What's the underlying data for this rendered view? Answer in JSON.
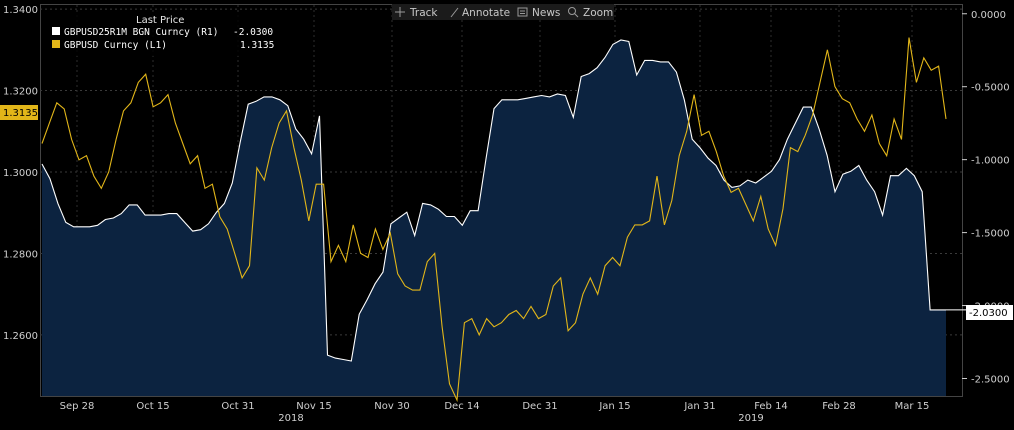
{
  "toolbar": {
    "track_label": "Track",
    "annotate_label": "Annotate",
    "news_label": "News",
    "zoom_label": "Zoom"
  },
  "legend": {
    "title": "Last Price",
    "entries": [
      {
        "name": "GBPUSD25R1M BGN Curncy  (R1)",
        "value": "-2.0300",
        "color": "#ffffff"
      },
      {
        "name": "GBPUSD Curncy  (L1)",
        "value": "1.3135",
        "color": "#e2b619"
      }
    ]
  },
  "last_value_tags": {
    "left": "1.3135",
    "right": "-2.0300"
  },
  "colors": {
    "background": "#000000",
    "area_fill": "#0c2340",
    "area_line": "#ffffff",
    "price_line": "#e2b619",
    "grid": "#3a3a3a"
  },
  "chart_data": {
    "type": "line",
    "x_tick_labels": [
      "Sep 28",
      "Oct 15",
      "Oct 31",
      "Nov 15",
      "Nov 30",
      "Dec 14",
      "Dec 31",
      "Jan 15",
      "Jan 31",
      "Feb 14",
      "Feb 28",
      "Mar 15"
    ],
    "year_labels": [
      "2018",
      "2019"
    ],
    "left_axis": {
      "ticks": [
        "1.3400",
        "1.3200",
        "1.3000",
        "1.2800",
        "1.2600"
      ],
      "range": [
        1.245,
        1.341
      ]
    },
    "right_axis": {
      "ticks": [
        "0.0000",
        "-0.5000",
        "-1.0000",
        "-1.5000",
        "-2.0000",
        "-2.5000"
      ],
      "range": [
        -2.62,
        0.06
      ]
    },
    "grid": true,
    "legend_position": "top-left",
    "series": [
      {
        "name": "GBPUSD25R1M BGN Curncy (R1)",
        "axis": "right",
        "style": "area",
        "values": [
          -1.03,
          -1.13,
          -1.3,
          -1.43,
          -1.46,
          -1.46,
          -1.46,
          -1.45,
          -1.41,
          -1.4,
          -1.37,
          -1.31,
          -1.31,
          -1.38,
          -1.38,
          -1.38,
          -1.37,
          -1.37,
          -1.43,
          -1.49,
          -1.48,
          -1.44,
          -1.36,
          -1.3,
          -1.16,
          -0.88,
          -0.62,
          -0.6,
          -0.57,
          -0.57,
          -0.59,
          -0.63,
          -0.79,
          -0.86,
          -0.96,
          -0.7,
          -2.34,
          -2.36,
          -2.37,
          -2.38,
          -2.06,
          -1.96,
          -1.85,
          -1.77,
          -1.44,
          -1.4,
          -1.36,
          -1.52,
          -1.3,
          -1.31,
          -1.34,
          -1.39,
          -1.39,
          -1.45,
          -1.35,
          -1.35,
          -0.99,
          -0.65,
          -0.59,
          -0.59,
          -0.59,
          -0.58,
          -0.57,
          -0.56,
          -0.57,
          -0.55,
          -0.56,
          -0.71,
          -0.43,
          -0.41,
          -0.37,
          -0.3,
          -0.21,
          -0.18,
          -0.19,
          -0.42,
          -0.32,
          -0.32,
          -0.33,
          -0.33,
          -0.4,
          -0.59,
          -0.86,
          -0.92,
          -0.99,
          -1.04,
          -1.14,
          -1.19,
          -1.18,
          -1.14,
          -1.16,
          -1.12,
          -1.08,
          -1.0,
          -0.86,
          -0.75,
          -0.64,
          -0.64,
          -0.79,
          -0.97,
          -1.22,
          -1.1,
          -1.08,
          -1.04,
          -1.14,
          -1.22,
          -1.38,
          -1.11,
          -1.11,
          -1.06,
          -1.11,
          -1.22,
          -2.03,
          -2.03,
          -2.03
        ]
      },
      {
        "name": "GBPUSD Curncy (L1)",
        "axis": "left",
        "style": "line",
        "values": [
          1.307,
          1.312,
          1.317,
          1.3155,
          1.308,
          1.303,
          1.304,
          1.299,
          1.296,
          1.3,
          1.308,
          1.315,
          1.317,
          1.322,
          1.324,
          1.316,
          1.317,
          1.319,
          1.312,
          1.307,
          1.302,
          1.304,
          1.296,
          1.297,
          1.289,
          1.286,
          1.28,
          1.274,
          1.277,
          1.301,
          1.298,
          1.306,
          1.312,
          1.315,
          1.306,
          1.298,
          1.288,
          1.297,
          1.297,
          1.278,
          1.282,
          1.278,
          1.287,
          1.28,
          1.279,
          1.286,
          1.281,
          1.285,
          1.275,
          1.272,
          1.271,
          1.271,
          1.278,
          1.28,
          1.262,
          1.248,
          1.244,
          1.263,
          1.264,
          1.26,
          1.264,
          1.262,
          1.263,
          1.265,
          1.266,
          1.264,
          1.267,
          1.264,
          1.265,
          1.272,
          1.274,
          1.261,
          1.263,
          1.27,
          1.274,
          1.27,
          1.277,
          1.279,
          1.277,
          1.284,
          1.287,
          1.287,
          1.288,
          1.299,
          1.287,
          1.293,
          1.304,
          1.31,
          1.319,
          1.309,
          1.31,
          1.305,
          1.299,
          1.295,
          1.296,
          1.292,
          1.288,
          1.294,
          1.286,
          1.282,
          1.291,
          1.306,
          1.305,
          1.309,
          1.314,
          1.322,
          1.33,
          1.321,
          1.318,
          1.317,
          1.313,
          1.31,
          1.314,
          1.307,
          1.304,
          1.313,
          1.308,
          1.333,
          1.322,
          1.328,
          1.325,
          1.326,
          1.313
        ]
      }
    ]
  }
}
